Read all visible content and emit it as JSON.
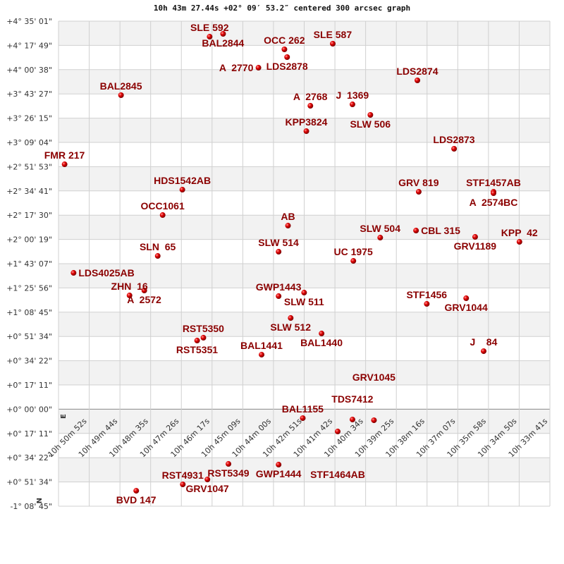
{
  "chart_data": {
    "type": "scatter",
    "title": "10h 43m 27.44s +02° 09′ 53.2″ centered 300 arcsec graph",
    "x_tick_labels": [
      "10h 50m 52s",
      "10h 49m 44s",
      "10h 48m 35s",
      "10h 47m 26s",
      "10h 46m 17s",
      "10h 45m 09s",
      "10h 44m 00s",
      "10h 42m 51s",
      "10h 41m 42s",
      "10h 40m 34s",
      "10h 39m 25s",
      "10h 38m 16s",
      "10h 37m 07s",
      "10h 35m 58s",
      "10h 34m 50s",
      "10h 33m 41s"
    ],
    "y_tick_labels": [
      "+4° 35' 01\"",
      "+4° 17' 49\"",
      "+4° 00' 38\"",
      "+3° 43' 27\"",
      "+3° 26' 15\"",
      "+3° 09' 04\"",
      "+2° 51' 53\"",
      "+2° 34' 41\"",
      "+2° 17' 30\"",
      "+2° 00' 19\"",
      "+1° 43' 07\"",
      "+1° 25' 56\"",
      "+1° 08' 45\"",
      "+0° 51' 34\"",
      "+0° 34' 22\"",
      "+0° 17' 11\"",
      "+0° 00' 00\"",
      "+0° 17' 11\"",
      "+0° 34' 22\"",
      "+0° 51' 34\"",
      "-1° 08' 45\""
    ],
    "compass": {
      "east": "E",
      "north": "N"
    },
    "grid": true,
    "band_colors": [
      "#f2f2f2",
      "#ffffff"
    ],
    "marker_color": "#e00000",
    "label_color": "#8b0000",
    "points": [
      {
        "name": "SLE 592",
        "ra": "10h 46m 23s",
        "dec": "+4° 24' 01\"",
        "label": "above"
      },
      {
        "name": "BAL2844",
        "ra": "10h 45m 53s",
        "dec": "+4° 26' 01\"",
        "label": "above"
      },
      {
        "name": "OCC 262",
        "ra": "10h 43m 36s",
        "dec": "+4° 15' 02\"",
        "label": "above"
      },
      {
        "name": "LDS2878",
        "ra": "10h 43m 30s",
        "dec": "+4° 09' 32\"",
        "label": "above"
      },
      {
        "name": "SLE 587",
        "ra": "10h 41m 48s",
        "dec": "+4° 19' 02\"",
        "label": "above"
      },
      {
        "name": "A  2770",
        "ra": "10h 44m 34s",
        "dec": "+4° 02' 02\"",
        "label": "above"
      },
      {
        "name": "BAL2845",
        "ra": "10h 49m 41s",
        "dec": "+3° 42' 33\"",
        "label": "above"
      },
      {
        "name": "LDS2874",
        "ra": "10h 38m 39s",
        "dec": "+3° 53' 03\"",
        "label": "above"
      },
      {
        "name": "A  2768",
        "ra": "10h 42m 38s",
        "dec": "+3° 35' 03\"",
        "label": "above"
      },
      {
        "name": "J  1369",
        "ra": "10h 41m 04s",
        "dec": "+3° 36' 03\"",
        "label": "above"
      },
      {
        "name": "SLW 506",
        "ra": "10h 40m 24s",
        "dec": "+3° 28' 34\"",
        "label": "above"
      },
      {
        "name": "KPP3824",
        "ra": "10h 42m 47s",
        "dec": "+3° 17' 04\"",
        "label": "above"
      },
      {
        "name": "LDS2873",
        "ra": "10h 37m 17s",
        "dec": "+3° 04' 35\"",
        "label": "above"
      },
      {
        "name": "FMR 217",
        "ra": "10h 51m 47s",
        "dec": "+2° 53' 35\"",
        "label": "above"
      },
      {
        "name": "HDS1542AB",
        "ra": "10h 47m 24s",
        "dec": "+2° 35' 36\"",
        "label": "above"
      },
      {
        "name": "GRV 819",
        "ra": "10h 38m 36s",
        "dec": "+2° 34' 06\"",
        "label": "above"
      },
      {
        "name": "STF1457AB",
        "ra": "10h 35m 49s",
        "dec": "+2° 34' 06\"",
        "label": "above"
      },
      {
        "name": "A  2574BC",
        "ra": "10h 35m 49s",
        "dec": "+2° 33' 06\"",
        "label": "above"
      },
      {
        "name": "OCC1061",
        "ra": "10h 48m 08s",
        "dec": "+2° 17' 36\"",
        "label": "above"
      },
      {
        "name": "AB",
        "ra": "10h 43m 28s",
        "dec": "+2° 10' 07\"",
        "label": "above"
      },
      {
        "name": "SLW 504",
        "ra": "10h 40m 02s",
        "dec": "+2° 01' 37\"",
        "label": "above"
      },
      {
        "name": "CBL 315",
        "ra": "10h 38m 42s",
        "dec": "+2° 06' 37\"",
        "label": "above"
      },
      {
        "name": "GRV1189",
        "ra": "10h 36m 30s",
        "dec": "+2° 02' 07\"",
        "label": "above"
      },
      {
        "name": "KPP  42",
        "ra": "10h 34m 51s",
        "dec": "+1° 58' 37\"",
        "label": "above"
      },
      {
        "name": "SLN  65",
        "ra": "10h 48m 19s",
        "dec": "+1° 48' 38\"",
        "label": "above"
      },
      {
        "name": "SLW 514",
        "ra": "10h 43m 49s",
        "dec": "+1° 51' 38\"",
        "label": "above"
      },
      {
        "name": "UC 1975",
        "ra": "10h 41m 02s",
        "dec": "+1° 45' 08\"",
        "label": "above"
      },
      {
        "name": "LDS4025AB",
        "ra": "10h 51m 27s",
        "dec": "+1° 36' 38\"",
        "label": "above"
      },
      {
        "name": "A  2572",
        "ra": "10h 48m 49s",
        "dec": "+1° 24' 09\"",
        "label": "above"
      },
      {
        "name": "ZHN  16",
        "ra": "10h 49m 22s",
        "dec": "+1° 20' 39\"",
        "label": "above"
      },
      {
        "name": "GWP1443",
        "ra": "10h 43m 49s",
        "dec": "+1° 20' 09\"",
        "label": "above"
      },
      {
        "name": "SLW 511",
        "ra": "10h 42m 52s",
        "dec": "+1° 22' 39\"",
        "label": "above"
      },
      {
        "name": "STF1456",
        "ra": "10h 38m 18s",
        "dec": "+1° 14' 39\"",
        "label": "above"
      },
      {
        "name": "GRV1044",
        "ra": "10h 36m 50s",
        "dec": "+1° 18' 39\"",
        "label": "above"
      },
      {
        "name": "SLW 512",
        "ra": "10h 43m 22s",
        "dec": "+1° 04' 39\"",
        "label": "above"
      },
      {
        "name": "BAL1440",
        "ra": "10h 42m 13s",
        "dec": "+0° 53' 40\"",
        "label": "above"
      },
      {
        "name": "RST5350",
        "ra": "10h 46m 37s",
        "dec": "+0° 50' 40\"",
        "label": "above"
      },
      {
        "name": "RST5351",
        "ra": "10h 46m 51s",
        "dec": "+0° 48' 40\"",
        "label": "above"
      },
      {
        "name": "BAL1441",
        "ra": "10h 44m 27s",
        "dec": "+0° 38' 40\"",
        "label": "above"
      },
      {
        "name": "J    84",
        "ra": "10h 36m 11s",
        "dec": "+0° 41' 10\"",
        "label": "above"
      },
      {
        "name": "BAL1155",
        "ra": "10h 42m 55s",
        "dec": "-0° 06' 18\"",
        "label": "below"
      },
      {
        "name": "TDS7412",
        "ra": "10h 41m 04s",
        "dec": "-0° 07' 18\"",
        "label": "below"
      },
      {
        "name": "GRV1045",
        "ra": "10h 40m 16s",
        "dec": "-0° 07' 48\"",
        "label": "below"
      },
      {
        "name": "STF1464AB",
        "ra": "10h 41m 37s",
        "dec": "-0° 15' 47\"",
        "label": "below"
      },
      {
        "name": "GWP1444",
        "ra": "10h 43m 49s",
        "dec": "-0° 39' 16\"",
        "label": "below"
      },
      {
        "name": "RST5349",
        "ra": "10h 45m 41s",
        "dec": "-0° 38' 46\"",
        "label": "right"
      },
      {
        "name": "GRV1047",
        "ra": "10h 46m 28s",
        "dec": "-0° 49' 46\"",
        "label": "below"
      },
      {
        "name": "RST4931",
        "ra": "10h 47m 23s",
        "dec": "-0° 53' 16\"",
        "label": "below"
      },
      {
        "name": "BVD 147",
        "ra": "10h 49m 07s",
        "dec": "-0° 57' 46\"",
        "label": "below"
      }
    ]
  }
}
